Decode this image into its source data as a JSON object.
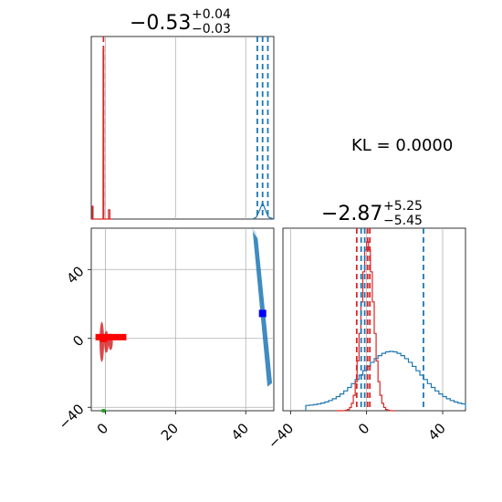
{
  "chart_data": {
    "type": "corner",
    "title_param1": {
      "value": "−0.53",
      "plus": "+0.04",
      "minus": "−0.03"
    },
    "title_param2": {
      "value": "−2.87",
      "plus": "+5.25",
      "minus": "−5.45"
    },
    "kl_label": "KL = 0.0000",
    "x1_ticks": [
      0,
      20,
      40
    ],
    "x1_tick_labels": [
      "0",
      "20",
      "40"
    ],
    "y2_ticks": [
      -40,
      0,
      40
    ],
    "y2_tick_labels": [
      "−40",
      "0",
      "40"
    ],
    "x2_ticks": [
      -40,
      0,
      40
    ],
    "x2_tick_labels": [
      "−40",
      "0",
      "40"
    ],
    "x1_range": [
      -4,
      48
    ],
    "x2_range": [
      -44,
      52
    ],
    "grid": true,
    "series_colors": {
      "red": "#d62728",
      "blue": "#1f77b4",
      "green": "#2ca02c",
      "marker_red": "#ff0000",
      "marker_blue": "#0000ff"
    },
    "param1_quantiles": {
      "red": [
        -0.56,
        -0.53,
        -0.49
      ],
      "blue": [
        43.3,
        44.8,
        46.3
      ]
    },
    "param2_quantiles": {
      "red": [
        -5.2,
        0.5,
        1.7
      ],
      "blue": [
        -1.0,
        -2.87,
        29.9
      ]
    },
    "param2_red_hist_peak": 0.0,
    "param2_blue_hist_peak": 12.0,
    "scatter_markers": [
      {
        "series": "red",
        "x": -0.53,
        "y": 0.0
      },
      {
        "series": "blue",
        "x": 44.8,
        "y": 14.5
      }
    ]
  }
}
